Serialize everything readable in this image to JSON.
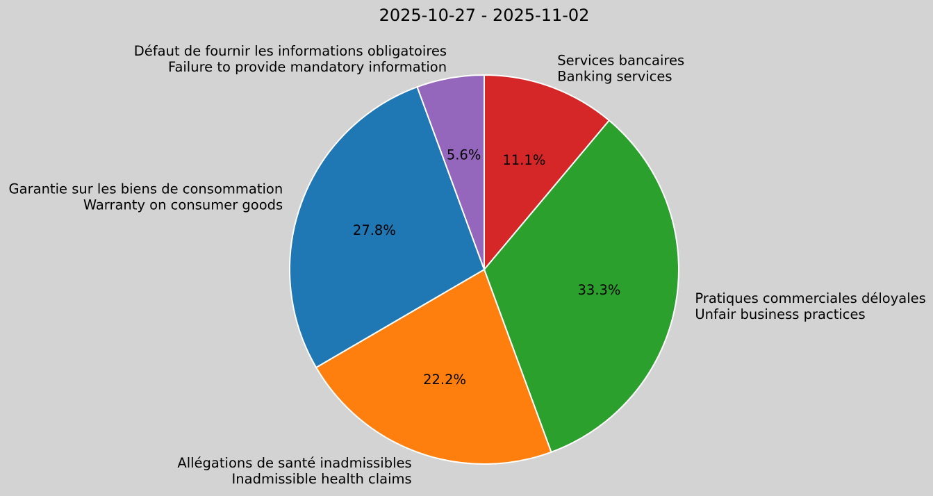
{
  "title": "2025-10-27 - 2025-11-02",
  "chart_data": {
    "type": "pie",
    "title": "2025-10-27 - 2025-11-02",
    "background": "#d3d3d3",
    "edge_color": "#ffffff",
    "text_color": "#000000",
    "start_angle_deg": 90,
    "direction": "clockwise",
    "label_distance": 1.1,
    "pct_distance": 0.6,
    "legend": "none",
    "slices": [
      {
        "label_fr": "Services bancaires",
        "label_en": "Banking services",
        "value": 11.1,
        "percent": "11.1%",
        "color": "#d62728"
      },
      {
        "label_fr": "Pratiques commerciales déloyales",
        "label_en": "Unfair business practices",
        "value": 33.3,
        "percent": "33.3%",
        "color": "#2ca02c"
      },
      {
        "label_fr": "Allégations de santé inadmissibles",
        "label_en": "Inadmissible health claims",
        "value": 22.2,
        "percent": "22.2%",
        "color": "#ff7f0e"
      },
      {
        "label_fr": "Garantie sur les biens de consommation",
        "label_en": "Warranty on consumer goods",
        "value": 27.8,
        "percent": "27.8%",
        "color": "#1f77b4"
      },
      {
        "label_fr": "Défaut de fournir les informations obligatoires",
        "label_en": "Failure to provide mandatory information",
        "value": 5.6,
        "percent": "5.6%",
        "color": "#9467bd"
      }
    ]
  }
}
